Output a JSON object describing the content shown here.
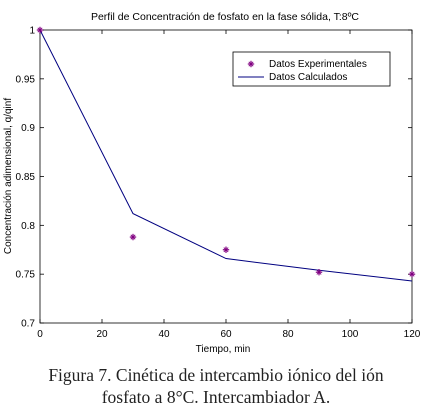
{
  "chart_data": {
    "type": "line",
    "title": "Perfil de Concentración de fosfato en la fase sólida, T:8ºC",
    "xlabel": "Tiempo, min",
    "ylabel": "Concentración adimensional,  q/qinf",
    "xlim": [
      0,
      120
    ],
    "ylim": [
      0.7,
      1.0
    ],
    "xticks": [
      0,
      20,
      40,
      60,
      80,
      100,
      120
    ],
    "yticks": [
      0.7,
      0.75,
      0.8,
      0.85,
      0.9,
      0.95,
      1
    ],
    "ytick_labels": [
      "0.7",
      "0.75",
      "0.8",
      "0.85",
      "0.9",
      "0.95",
      "1"
    ],
    "grid": false,
    "legend_position": "top-right",
    "series": [
      {
        "name": "Datos Experimentales",
        "style": "markers",
        "marker": "plus-star",
        "color": "#800080",
        "x": [
          0,
          30,
          60,
          90,
          120
        ],
        "y": [
          1.0,
          0.788,
          0.775,
          0.752,
          0.75
        ]
      },
      {
        "name": "Datos Calculados",
        "style": "line",
        "color": "#000080",
        "x": [
          0,
          30,
          60,
          90,
          120
        ],
        "y": [
          1.0,
          0.812,
          0.766,
          0.754,
          0.743
        ]
      }
    ]
  },
  "caption": {
    "line1": "Figura 7. Cinética de intercambio iónico del ión",
    "line2": "fosfato a 8°C. Intercambiador A."
  }
}
